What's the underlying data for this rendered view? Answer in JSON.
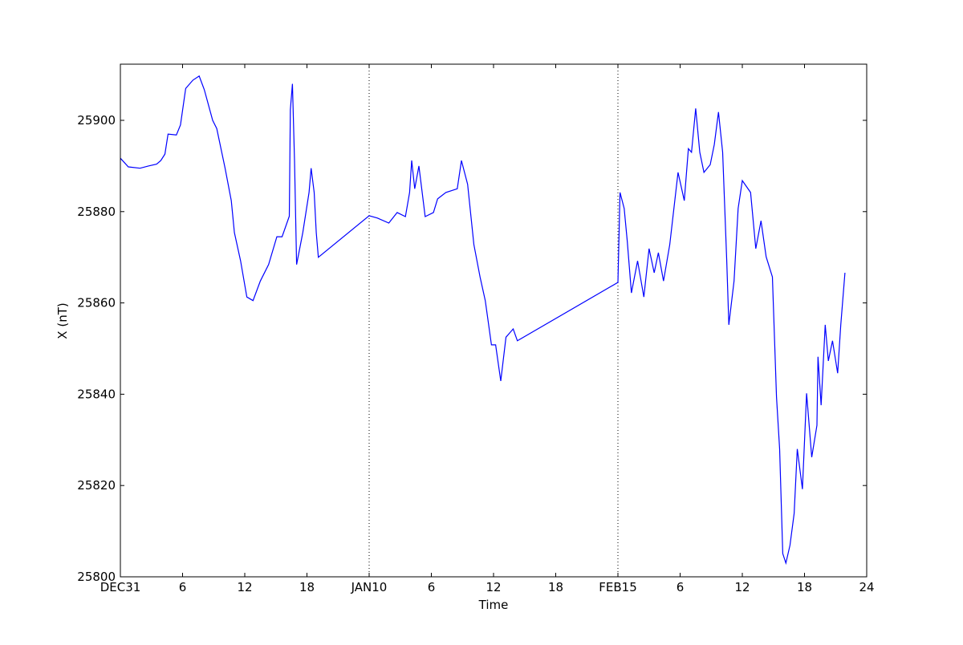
{
  "chart_data": {
    "type": "line",
    "title": "",
    "xlabel": "Time",
    "ylabel": "X (nT)",
    "xlim": [
      0,
      72
    ],
    "ylim": [
      25800,
      25912.3
    ],
    "x_ticks": [
      {
        "x": 0,
        "label": "DEC31"
      },
      {
        "x": 6,
        "label": "6"
      },
      {
        "x": 12,
        "label": "12"
      },
      {
        "x": 18,
        "label": "18"
      },
      {
        "x": 24,
        "label": "JAN10"
      },
      {
        "x": 30,
        "label": "6"
      },
      {
        "x": 36,
        "label": "12"
      },
      {
        "x": 42,
        "label": "18"
      },
      {
        "x": 48,
        "label": "FEB15"
      },
      {
        "x": 54,
        "label": "6"
      },
      {
        "x": 60,
        "label": "12"
      },
      {
        "x": 66,
        "label": "18"
      },
      {
        "x": 72,
        "label": "24"
      }
    ],
    "y_ticks": [
      25800,
      25820,
      25840,
      25860,
      25880,
      25900
    ],
    "day_separators": [
      24,
      48
    ],
    "grid": false,
    "line_color": "#0000ff",
    "series": [
      {
        "x": [
          0,
          0.77,
          1.9,
          2.7,
          3.5,
          3.9,
          4.3,
          4.6,
          5.4,
          5.8,
          6.3,
          7,
          7.6,
          8.1,
          8.9,
          9.3,
          10.1,
          10.7,
          11.0,
          11.6,
          12.2,
          12.8,
          13.5,
          14.3,
          15.1,
          15.6,
          16.3,
          16.4,
          16.6,
          16.8,
          17.0,
          17.6,
          18.2,
          18.4,
          18.7,
          18.9,
          19.1,
          24,
          24.8,
          25.9,
          26.7,
          27.5,
          27.9,
          28.1,
          28.4,
          28.8,
          29.4,
          30.2,
          30.6,
          31.4,
          32.5,
          32.9,
          33.5,
          34.1,
          34.7,
          35.2,
          35.8,
          36.2,
          36.7,
          37.2,
          37.9,
          38.3,
          48,
          48.2,
          48.6,
          48.9,
          49.3,
          49.9,
          50.5,
          51,
          51.5,
          51.9,
          52.4,
          53,
          53.8,
          54.4,
          54.8,
          55.1,
          55.5,
          55.9,
          56.3,
          56.9,
          57.3,
          57.7,
          58.1,
          58.5,
          58.7,
          59.2,
          59.6,
          60.0,
          60.8,
          61.3,
          61.8,
          62.3,
          62.9,
          63.3,
          63.6,
          63.9,
          64.2,
          64.6,
          65.0,
          65.3,
          65.8,
          66.2,
          66.7,
          67.2,
          67.3,
          67.6,
          68.0,
          68.3,
          68.7,
          69.2,
          69.5,
          69.9
        ],
        "y": [
          25891.7,
          25889.8,
          25889.5,
          25890,
          25890.4,
          25891.2,
          25892.6,
          25897,
          25896.8,
          25899,
          25907,
          25908.8,
          25909.7,
          25906.7,
          25900,
          25898.2,
          25889.5,
          25882.4,
          25875.4,
          25869.2,
          25861.3,
          25860.5,
          25864.8,
          25868.4,
          25874.5,
          25874.5,
          25879,
          25902.3,
          25908,
          25891.2,
          25868.4,
          25875.4,
          25884.2,
          25889.5,
          25884.2,
          25875.4,
          25870,
          25879.1,
          25878.6,
          25877.5,
          25879.8,
          25878.9,
          25884.2,
          25891.2,
          25885,
          25890,
          25878.9,
          25879.8,
          25882.8,
          25884.2,
          25885,
          25891.2,
          25886,
          25872.8,
          25865.7,
          25860.5,
          25850.8,
          25850.8,
          25842.9,
          25852.5,
          25854.3,
          25851.7,
          25864.5,
          25884.2,
          25880.7,
          25873.6,
          25862.2,
          25869.2,
          25861.3,
          25871.9,
          25866.6,
          25871,
          25864.8,
          25872.8,
          25888.6,
          25882.4,
          25893.8,
          25893,
          25902.6,
          25893,
          25888.6,
          25890.3,
          25894.7,
          25901.8,
          25893,
          25869.2,
          25855.2,
          25864.8,
          25880.7,
          25886.8,
          25884.2,
          25871.9,
          25878,
          25870.1,
          25865.7,
          25839.4,
          25828,
          25805.1,
          25803,
          25806.9,
          25813.9,
          25828,
          25819.2,
          25840.2,
          25826.2,
          25833.2,
          25848.2,
          25837.6,
          25855.2,
          25847.3,
          25851.7,
          25844.6,
          25855.2,
          25866.6
        ]
      }
    ]
  }
}
